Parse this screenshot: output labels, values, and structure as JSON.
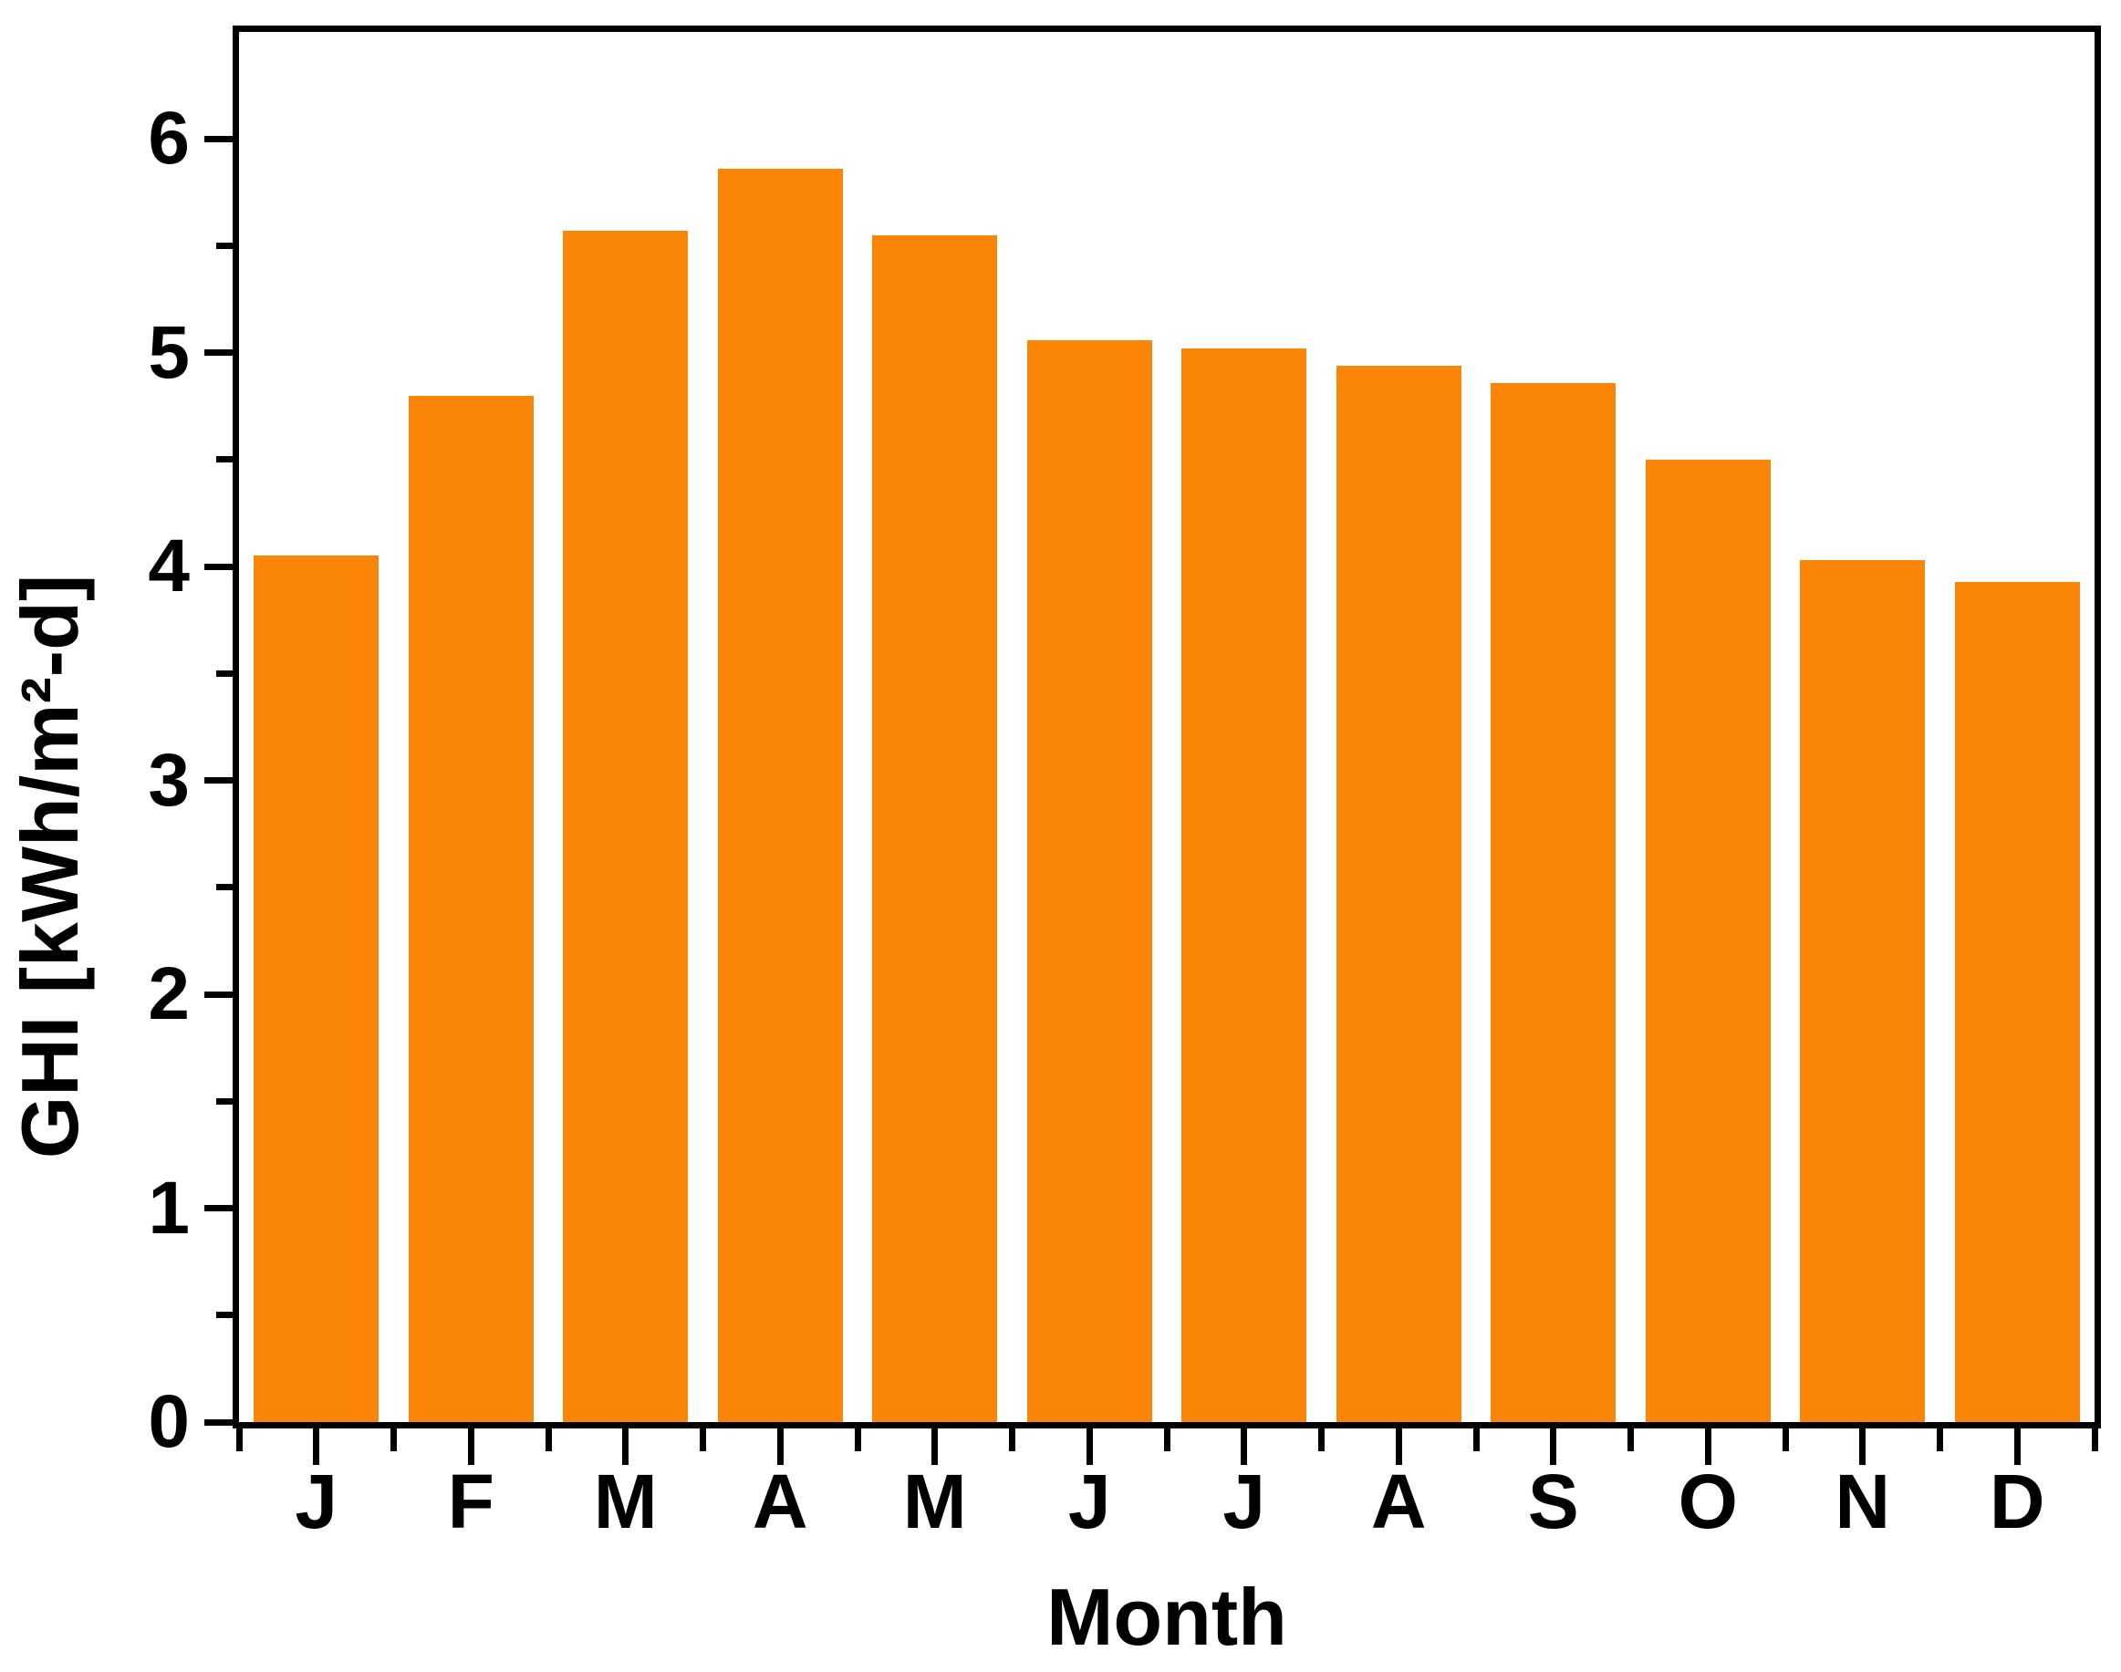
{
  "chart_data": {
    "type": "bar",
    "title": "",
    "xlabel": "Month",
    "ylabel": "GHI [kWh/m²-d]",
    "categories": [
      "J",
      "F",
      "M",
      "A",
      "M",
      "J",
      "J",
      "A",
      "S",
      "O",
      "N",
      "D"
    ],
    "values": [
      4.05,
      4.8,
      5.57,
      5.86,
      5.55,
      5.06,
      5.02,
      4.94,
      4.86,
      4.5,
      4.03,
      3.93
    ],
    "ylim": [
      0,
      6.5
    ],
    "y_major_ticks": [
      0,
      1,
      2,
      3,
      4,
      5,
      6
    ],
    "y_minor_ticks": [
      0.5,
      1.5,
      2.5,
      3.5,
      4.5,
      5.5
    ],
    "grid": false,
    "legend_position": "none",
    "bar_color": "#FA8507",
    "axis_color": "#000000",
    "background_color": "#FFFFFF"
  }
}
